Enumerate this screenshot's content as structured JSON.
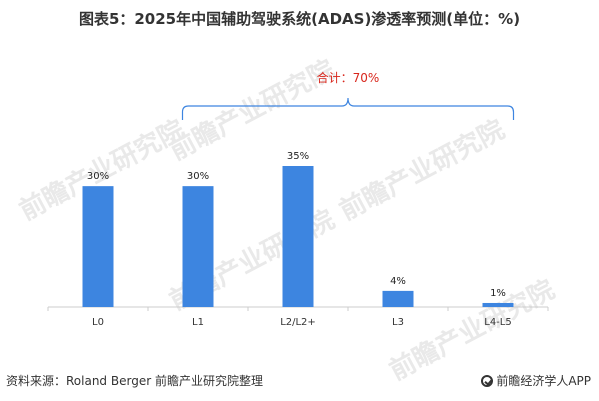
{
  "title": "图表5：2025年中国辅助驾驶系统(ADAS)渗透率预测(单位：%)",
  "source": "资料来源：Roland Berger 前瞻产业研究院整理",
  "brand": "前瞻经济学人APP",
  "watermark": "前瞻产业研究院",
  "colors": {
    "bar": "#3d85e0",
    "total": "#d8261c",
    "bracket": "#3d85e0",
    "axis": "#cccccc"
  },
  "chart_data": {
    "type": "bar",
    "categories": [
      "L0",
      "L1",
      "L2/L2+",
      "L3",
      "L4-L5"
    ],
    "values": [
      30,
      30,
      35,
      4,
      1
    ],
    "data_labels": [
      "30%",
      "30%",
      "35%",
      "4%",
      "1%"
    ],
    "annotation": "合计：70%",
    "annotation_spans": [
      "L1",
      "L4-L5"
    ],
    "ylim": [
      0,
      35
    ],
    "grid": false,
    "legend": "none"
  }
}
